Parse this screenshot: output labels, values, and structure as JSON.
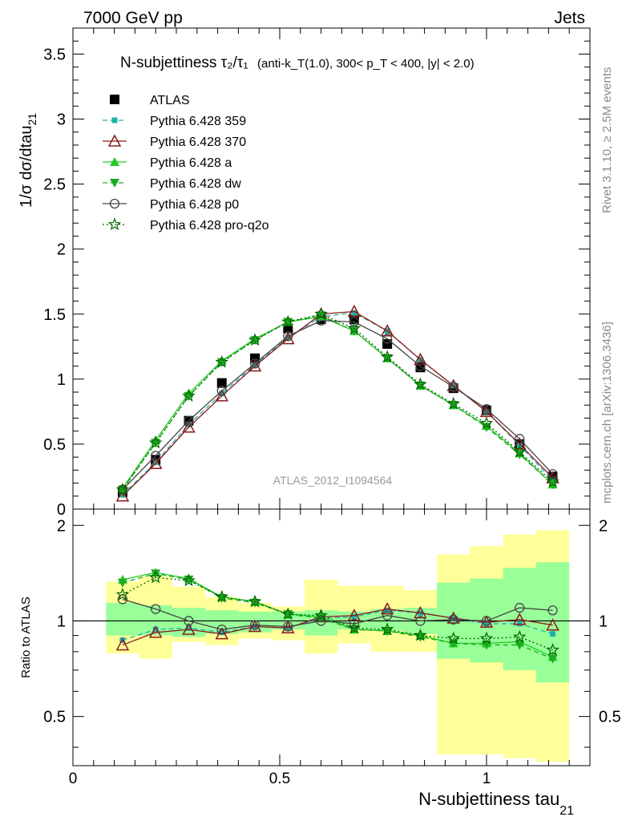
{
  "header": {
    "energy_label": "7000 GeV pp",
    "category_label": "Jets"
  },
  "side_labels": {
    "rivet": "Rivet 3.1.10, ≥ 2.5M events",
    "mcplots": "mcplots.cern.ch [arXiv:1306.3436]"
  },
  "chart_data": {
    "type": "line",
    "title": "N-subjettiness τ₂/τ₁ (anti-k_T(1.0), 300< p_T < 400, |y| < 2.0)",
    "title_main": "N-subjettiness τ₂/τ₁",
    "title_sub": "(anti-k_T(1.0), 300< p_T < 400, |y| < 2.0)",
    "analysis_tag": "ATLAS_2012_I1094564",
    "xlabel": "N-subjettiness tau_21",
    "xlabel_main": "N-subjettiness tau",
    "xlabel_sub": "21",
    "ylabel": "1/σ dσ/dtau_21",
    "ylabel_main": "1/σ dσ/dtau",
    "ylabel_sub": "21",
    "xlim": [
      0,
      1.25
    ],
    "ylim": [
      0,
      3.7
    ],
    "x_ticks": [
      "0",
      "0.5",
      "1"
    ],
    "y_ticks": [
      "0",
      "0.5",
      "1",
      "1.5",
      "2",
      "2.5",
      "3",
      "3.5"
    ],
    "bin_edges": [
      0.08,
      0.16,
      0.24,
      0.32,
      0.4,
      0.48,
      0.56,
      0.64,
      0.72,
      0.8,
      0.88,
      0.96,
      1.04,
      1.12,
      1.2
    ],
    "x": [
      0.12,
      0.2,
      0.28,
      0.36,
      0.44,
      0.52,
      0.6,
      0.68,
      0.76,
      0.84,
      0.92,
      1.0,
      1.08,
      1.16
    ],
    "legend_position": "top-left",
    "series": [
      {
        "name": "ATLAS",
        "color": "#000000",
        "marker": "square",
        "line": "none",
        "values": [
          0.13,
          0.38,
          0.68,
          0.97,
          1.16,
          1.39,
          1.46,
          1.46,
          1.27,
          1.09,
          0.93,
          0.76,
          0.5,
          0.25
        ]
      },
      {
        "name": "Pythia 6.428 359",
        "color": "#20b2aa",
        "marker": "small-square",
        "line": "dashed",
        "values": [
          0.11,
          0.36,
          0.65,
          0.89,
          1.11,
          1.32,
          1.48,
          1.51,
          1.37,
          1.15,
          0.95,
          0.75,
          0.49,
          0.22
        ]
      },
      {
        "name": "Pythia 6.428 370",
        "color": "#8b1a1a",
        "marker": "open-triangle",
        "line": "solid",
        "values": [
          0.1,
          0.35,
          0.63,
          0.87,
          1.1,
          1.31,
          1.5,
          1.52,
          1.37,
          1.15,
          0.95,
          0.75,
          0.5,
          0.24
        ]
      },
      {
        "name": "Pythia 6.428 a",
        "color": "#22cc22",
        "marker": "filled-triangle",
        "line": "solid",
        "values": [
          0.16,
          0.53,
          0.89,
          1.14,
          1.31,
          1.44,
          1.48,
          1.37,
          1.16,
          0.95,
          0.8,
          0.64,
          0.43,
          0.19
        ]
      },
      {
        "name": "Pythia 6.428 dw",
        "color": "#1faa1f",
        "marker": "down-triangle",
        "line": "dashed",
        "values": [
          0.15,
          0.51,
          0.87,
          1.13,
          1.3,
          1.44,
          1.49,
          1.37,
          1.16,
          0.95,
          0.8,
          0.63,
          0.42,
          0.19
        ]
      },
      {
        "name": "Pythia 6.428 p0",
        "color": "#444444",
        "marker": "open-circle",
        "line": "solid",
        "values": [
          0.15,
          0.41,
          0.68,
          0.91,
          1.12,
          1.33,
          1.45,
          1.44,
          1.31,
          1.1,
          0.94,
          0.77,
          0.54,
          0.27
        ]
      },
      {
        "name": "Pythia 6.428 pro-q2o",
        "color": "#006400",
        "marker": "open-star",
        "line": "dotted",
        "values": [
          0.15,
          0.51,
          0.87,
          1.13,
          1.3,
          1.44,
          1.5,
          1.39,
          1.17,
          0.96,
          0.81,
          0.66,
          0.44,
          0.21
        ]
      }
    ],
    "ratio_panel": {
      "ylabel": "Ratio to ATLAS",
      "ylim": [
        0.35,
        2.25
      ],
      "log_scale": true,
      "y_ticks": [
        "0.5",
        "1",
        "2"
      ],
      "reference_line": 1,
      "band_inner_color": "#99ff99",
      "band_outer_color": "#ffff99",
      "band_inner": [
        [
          0.9,
          1.14
        ],
        [
          0.9,
          1.12
        ],
        [
          0.89,
          1.1
        ],
        [
          0.91,
          1.08
        ],
        [
          0.92,
          1.07
        ],
        [
          0.94,
          1.07
        ],
        [
          0.9,
          1.08
        ],
        [
          0.94,
          1.07
        ],
        [
          0.93,
          1.09
        ],
        [
          0.91,
          1.1
        ],
        [
          0.76,
          1.32
        ],
        [
          0.74,
          1.36
        ],
        [
          0.7,
          1.47
        ],
        [
          0.64,
          1.53
        ]
      ],
      "band_outer": [
        [
          0.79,
          1.33
        ],
        [
          0.76,
          1.38
        ],
        [
          0.86,
          1.28
        ],
        [
          0.84,
          1.19
        ],
        [
          0.88,
          1.14
        ],
        [
          0.87,
          1.11
        ],
        [
          0.79,
          1.35
        ],
        [
          0.85,
          1.29
        ],
        [
          0.8,
          1.29
        ],
        [
          0.8,
          1.25
        ],
        [
          0.38,
          1.62
        ],
        [
          0.38,
          1.72
        ],
        [
          0.37,
          1.87
        ],
        [
          0.36,
          1.93
        ]
      ],
      "series": [
        {
          "name": "Pythia 6.428 359",
          "values": [
            0.87,
            0.94,
            0.95,
            0.92,
            0.96,
            0.95,
            1.02,
            1.03,
            1.08,
            1.06,
            1.02,
            0.98,
            0.98,
            0.91
          ]
        },
        {
          "name": "Pythia 6.428 370",
          "values": [
            0.84,
            0.92,
            0.94,
            0.91,
            0.96,
            0.95,
            1.03,
            1.04,
            1.09,
            1.06,
            1.02,
            0.99,
            1.01,
            0.97
          ]
        },
        {
          "name": "Pythia 6.428 a",
          "values": [
            1.35,
            1.42,
            1.36,
            1.19,
            1.15,
            1.05,
            1.03,
            0.94,
            0.93,
            0.9,
            0.85,
            0.85,
            0.86,
            0.77
          ]
        },
        {
          "name": "Pythia 6.428 dw",
          "values": [
            1.32,
            1.41,
            1.35,
            1.18,
            1.14,
            1.05,
            1.02,
            0.94,
            0.93,
            0.89,
            0.85,
            0.84,
            0.84,
            0.76
          ]
        },
        {
          "name": "Pythia 6.428 p0",
          "values": [
            1.17,
            1.09,
            1.0,
            0.94,
            0.97,
            0.96,
            1.0,
            0.98,
            1.04,
            1.0,
            1.01,
            1.0,
            1.1,
            1.08
          ]
        },
        {
          "name": "Pythia 6.428 pro-q2o",
          "values": [
            1.21,
            1.37,
            1.34,
            1.19,
            1.15,
            1.05,
            1.04,
            0.95,
            0.94,
            0.9,
            0.88,
            0.88,
            0.89,
            0.81
          ]
        }
      ]
    }
  }
}
